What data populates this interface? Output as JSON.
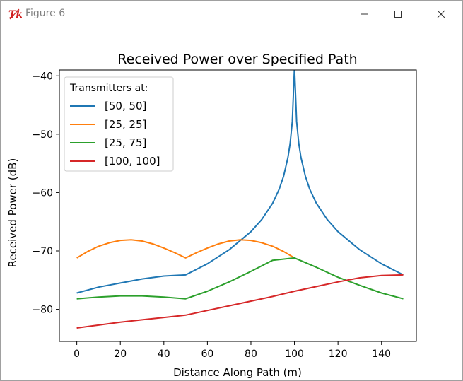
{
  "window": {
    "title": "Figure 6",
    "icon": "tk-feather-icon",
    "controls": [
      "minimize-icon",
      "maximize-icon",
      "close-icon"
    ]
  },
  "colors": {
    "series": [
      "#1f77b4",
      "#ff7f0e",
      "#2ca02c",
      "#d62728"
    ]
  },
  "chart_data": {
    "type": "line",
    "title": "Received Power over Specified Path",
    "xlabel": "Distance Along Path (m)",
    "ylabel": "Received Power (dB)",
    "xlim": [
      -8,
      156
    ],
    "ylim": [
      -85.5,
      -39
    ],
    "xticks": [
      0,
      20,
      40,
      60,
      80,
      100,
      120,
      140
    ],
    "yticks": [
      -40,
      -50,
      -60,
      -70,
      -80
    ],
    "xtick_labels": [
      "0",
      "20",
      "40",
      "60",
      "80",
      "100",
      "120",
      "140"
    ],
    "ytick_labels": [
      "−40",
      "−50",
      "−60",
      "−70",
      "−80"
    ],
    "grid": false,
    "legend": {
      "title": "Transmitters at:",
      "placement": "upper-left"
    },
    "series": [
      {
        "name": "[50, 50]",
        "x": [
          0,
          10,
          20,
          30,
          40,
          50,
          60,
          70,
          80,
          85,
          90,
          93,
          95,
          97,
          98,
          99,
          100,
          101,
          102,
          103,
          105,
          107,
          110,
          115,
          120,
          130,
          140,
          150
        ],
        "y": [
          -77.2,
          -76.2,
          -75.5,
          -74.8,
          -74.3,
          -74.1,
          -72.2,
          -69.8,
          -66.7,
          -64.6,
          -61.8,
          -59.4,
          -57.2,
          -54.0,
          -51.6,
          -47.8,
          -38.5,
          -47.8,
          -51.6,
          -54.0,
          -57.2,
          -59.4,
          -61.8,
          -64.6,
          -66.7,
          -69.8,
          -72.2,
          -74.1
        ]
      },
      {
        "name": "[25, 25]",
        "x": [
          0,
          5,
          10,
          15,
          20,
          25,
          30,
          35,
          40,
          45,
          50,
          55,
          60,
          65,
          70,
          75,
          80,
          85,
          90,
          95,
          100
        ],
        "y": [
          -71.2,
          -70.1,
          -69.2,
          -68.6,
          -68.2,
          -68.1,
          -68.3,
          -68.8,
          -69.5,
          -70.3,
          -71.2,
          -70.3,
          -69.5,
          -68.8,
          -68.3,
          -68.1,
          -68.2,
          -68.6,
          -69.2,
          -70.1,
          -71.2
        ]
      },
      {
        "name": "[25, 75]",
        "x": [
          0,
          10,
          20,
          25,
          30,
          40,
          50,
          60,
          70,
          80,
          90,
          100,
          110,
          120,
          130,
          140,
          150
        ],
        "y": [
          -78.2,
          -77.9,
          -77.7,
          -77.7,
          -77.7,
          -77.9,
          -78.2,
          -76.9,
          -75.3,
          -73.5,
          -71.6,
          -71.2,
          -72.8,
          -74.5,
          -75.9,
          -77.2,
          -78.2
        ]
      },
      {
        "name": "[100, 100]",
        "x": [
          0,
          10,
          20,
          30,
          40,
          50,
          60,
          70,
          80,
          90,
          100,
          110,
          120,
          130,
          140,
          150
        ],
        "y": [
          -83.2,
          -82.7,
          -82.2,
          -81.8,
          -81.4,
          -81.0,
          -80.2,
          -79.4,
          -78.6,
          -77.8,
          -76.9,
          -76.1,
          -75.3,
          -74.6,
          -74.2,
          -74.1
        ]
      }
    ]
  }
}
